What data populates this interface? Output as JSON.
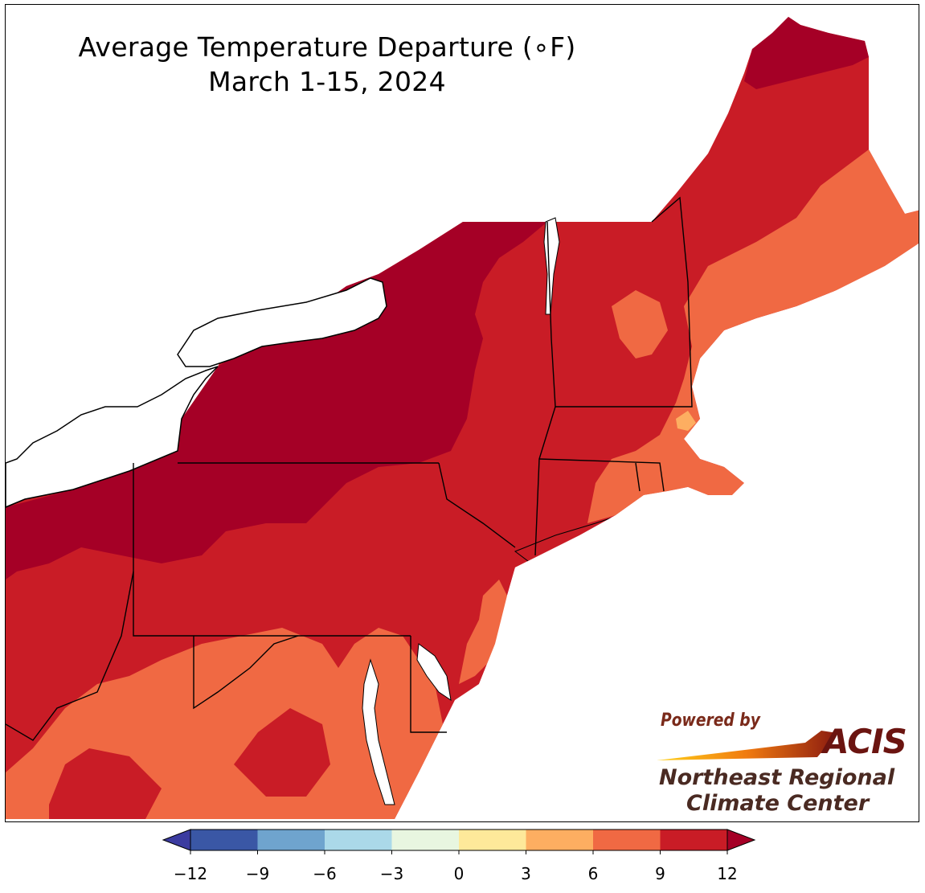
{
  "title": {
    "line1": "Average Temperature Departure (∘F)",
    "line2": "March 1-15, 2024"
  },
  "legend": {
    "colors": [
      "#3a57a5",
      "#6fa4ce",
      "#abd9e9",
      "#e8f6e0",
      "#fee99a",
      "#fdae61",
      "#f06943",
      "#c91c26"
    ],
    "extend_low_color": "#3b3ba0",
    "extend_high_color": "#a50026",
    "ticks": [
      "−12",
      "−9",
      "−6",
      "−3",
      "0",
      "3",
      "6",
      "9",
      "12"
    ]
  },
  "map": {
    "region": "Northeast United States",
    "dominant_colors": {
      "departure_12_plus": "#a50026",
      "departure_9_to_12": "#c91c26",
      "departure_6_to_9": "#f06943",
      "departure_3_to_6": "#fdae61"
    }
  },
  "logo": {
    "powered_by": "Powered by",
    "acis": "ACIS",
    "org_line1": "Northeast Regional",
    "org_line2": "Climate Center"
  }
}
